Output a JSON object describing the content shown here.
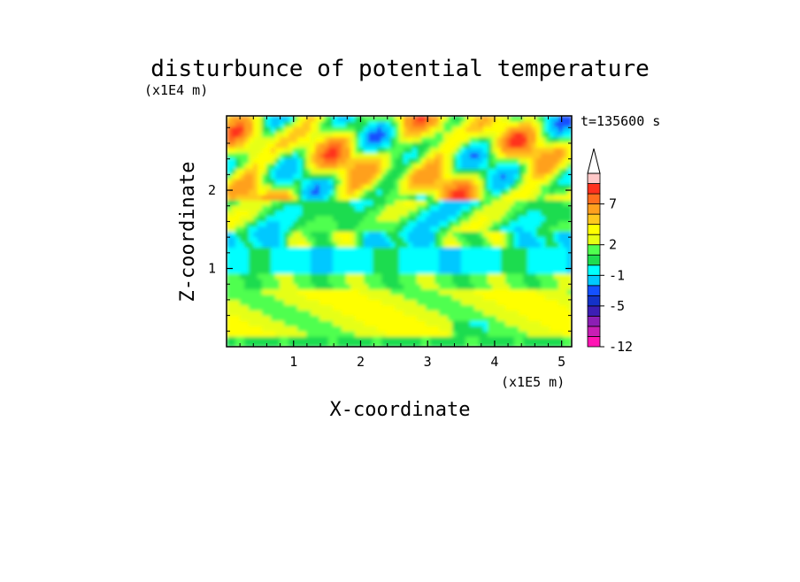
{
  "chart_data": {
    "type": "heatmap",
    "title": "disturbunce of potential temperature",
    "xlabel": "X-coordinate",
    "ylabel": "Z-coordinate",
    "x_unit": "(x1E5 m)",
    "y_unit": "(x1E4 m)",
    "time_label": "t=135600 s",
    "xlim": [
      0,
      5.15
    ],
    "ylim": [
      0,
      2.95
    ],
    "x_ticks": [
      "1",
      "2",
      "3",
      "4",
      "5"
    ],
    "y_ticks": [
      "1",
      "2"
    ],
    "colorbar": {
      "levels": [
        -12,
        -10,
        -8,
        -7,
        -5,
        -4,
        -3,
        -1,
        0,
        1,
        2,
        3,
        4,
        5,
        7,
        8,
        10
      ],
      "tick_labels": [
        "7",
        "2",
        "-1",
        "-5",
        "-12"
      ],
      "colors": [
        "#ff14b4",
        "#c81eb4",
        "#8c1eb4",
        "#3c1eb4",
        "#1432c8",
        "#1450ff",
        "#00c8ff",
        "#00ffff",
        "#1edc50",
        "#50ff50",
        "#e6ff14",
        "#ffff00",
        "#ffc81e",
        "#ffa01e",
        "#ff6e1e",
        "#ff321e",
        "#ffc8c8"
      ],
      "extend": "max"
    },
    "field_bands": [
      {
        "z_range": [
          0.0,
          0.12
        ],
        "value": 0.5
      },
      {
        "z_range": [
          0.12,
          0.75
        ],
        "value": 2.5
      },
      {
        "z_range": [
          0.75,
          0.95
        ],
        "value": 1.5
      },
      {
        "z_range": [
          0.95,
          1.25
        ],
        "value": -0.5
      },
      {
        "z_range": [
          1.25,
          1.45
        ],
        "value": 0.3
      },
      {
        "z_range": [
          1.45,
          1.85
        ],
        "value": 0.8
      },
      {
        "z_range": [
          1.85,
          2.95
        ],
        "value": 3.5
      }
    ]
  }
}
